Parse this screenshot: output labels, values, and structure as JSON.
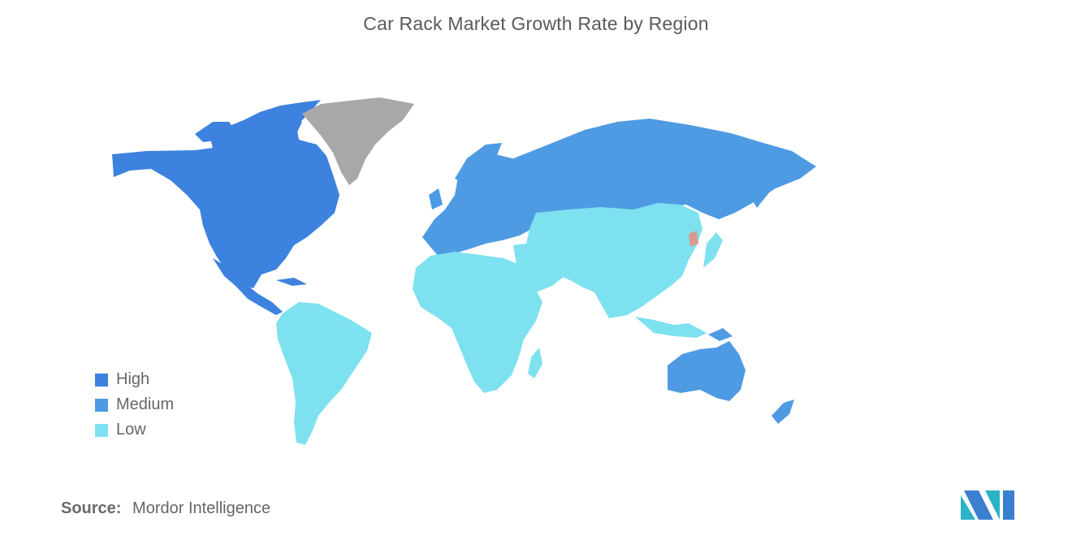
{
  "title": "Car Rack Market Growth Rate by Region",
  "legend": [
    {
      "label": "High",
      "color": "#3d82de"
    },
    {
      "label": "Medium",
      "color": "#4f9be3"
    },
    {
      "label": "Low",
      "color": "#7ee1ef"
    }
  ],
  "colors": {
    "high": "#3d82de",
    "medium": "#4f9be3",
    "low": "#7ee1ef",
    "no_data": "#a8a8a8",
    "highlight": "#d99a8f"
  },
  "regions": [
    {
      "name": "North America",
      "level": "High"
    },
    {
      "name": "Europe",
      "level": "Medium"
    },
    {
      "name": "Russia",
      "level": "Medium"
    },
    {
      "name": "Australia and New Zealand",
      "level": "Medium"
    },
    {
      "name": "Asia",
      "level": "Low"
    },
    {
      "name": "Middle East",
      "level": "Low"
    },
    {
      "name": "Africa",
      "level": "Low"
    },
    {
      "name": "South America",
      "level": "Low"
    },
    {
      "name": "Greenland",
      "level": "No data"
    }
  ],
  "source": {
    "label": "Source:",
    "value": "Mordor Intelligence"
  },
  "logo": {
    "icon": "mordor-intelligence-logo"
  }
}
